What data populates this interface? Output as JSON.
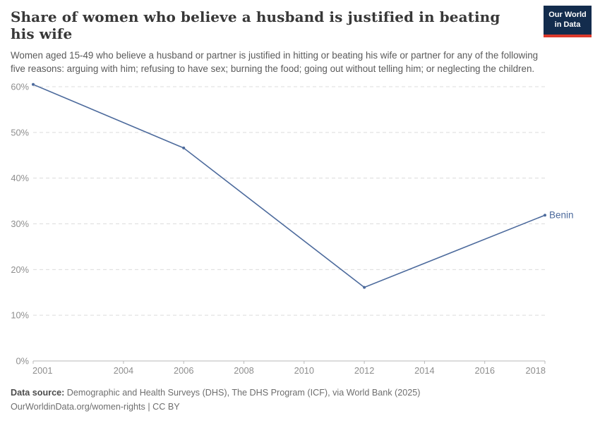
{
  "header": {
    "title": "Share of women who believe a husband is justified in beating his wife",
    "subtitle": "Women aged 15-49 who believe a husband or partner is justified in hitting or beating his wife or partner for any of the following five reasons: arguing with him; refusing to have sex; burning the food; going out without telling him; or neglecting the children.",
    "logo": {
      "line1": "Our World",
      "line2": "in Data"
    }
  },
  "chart_data": {
    "type": "line",
    "title": "Share of women who believe a husband is justified in beating his wife",
    "series": [
      {
        "name": "Benin",
        "color": "#4c6a9c",
        "x": [
          2001,
          2006,
          2012,
          2018
        ],
        "values": [
          60.5,
          46.6,
          16.1,
          31.9
        ]
      }
    ],
    "x_ticks": [
      2001,
      2004,
      2006,
      2008,
      2010,
      2012,
      2014,
      2016,
      2018
    ],
    "y_ticks": [
      0,
      10,
      20,
      30,
      40,
      50,
      60
    ],
    "y_tick_suffix": "%",
    "xlim": [
      2001,
      2018
    ],
    "ylim": [
      0,
      60
    ],
    "grid": "horizontal-dashed",
    "legend_position": "end-of-line-label"
  },
  "footer": {
    "source_label": "Data source:",
    "source_text": " Demographic and Health Surveys (DHS), The DHS Program (ICF), via World Bank (2025)",
    "link": "OurWorldinData.org/women-rights",
    "separator": " | ",
    "license": "CC BY"
  },
  "colors": {
    "line": "#4c6a9c",
    "logo_bg": "#132c4d",
    "logo_stripe": "#dc392b",
    "gridline": "#dcdcdc",
    "axis": "#b9b9b9",
    "tick_label": "#8e8e8e",
    "title_text": "#383838",
    "subtitle_text": "#5a5a5a"
  }
}
